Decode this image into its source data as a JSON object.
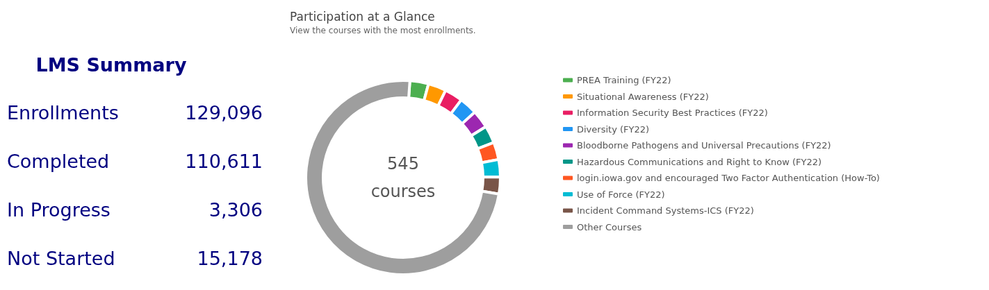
{
  "chart_data": [
    {
      "type": "other",
      "title": "LMS Summary",
      "categories": [
        "Enrollments",
        "Completed",
        "In Progress",
        "Not Started"
      ],
      "values": [
        129096,
        110611,
        3306,
        15178
      ],
      "value_labels": [
        "129,096",
        "110,611",
        "3,306",
        "15,178"
      ]
    },
    {
      "type": "donut",
      "title": "Participation at a Glance",
      "subtitle": "View the courses with the most enrollments.",
      "annotations": [
        "545",
        "courses"
      ],
      "legend": "right",
      "categories": [
        "PREA Training (FY22)",
        "Situational Awareness (FY22)",
        "Information Security Best Practices (FY22)",
        "Diversity (FY22)",
        "Bloodborne Pathogens and Universal Precautions (FY22)",
        "Hazardous Communications and Right to Know (FY22)",
        "login.iowa.gov and encouraged Two Factor Authentication (How-To)",
        "Use of Force (FY22)",
        "Incident Command Systems-ICS (FY22)",
        "Other Courses"
      ],
      "values": [
        3.1,
        3.0,
        3.0,
        3.0,
        3.0,
        2.9,
        2.9,
        2.9,
        2.8,
        73.4
      ],
      "colors": [
        "#4caf50",
        "#ff9800",
        "#e91e63",
        "#2196f3",
        "#9c27b0",
        "#009688",
        "#ff5722",
        "#00bcd4",
        "#795548",
        "#9e9e9e"
      ]
    }
  ]
}
